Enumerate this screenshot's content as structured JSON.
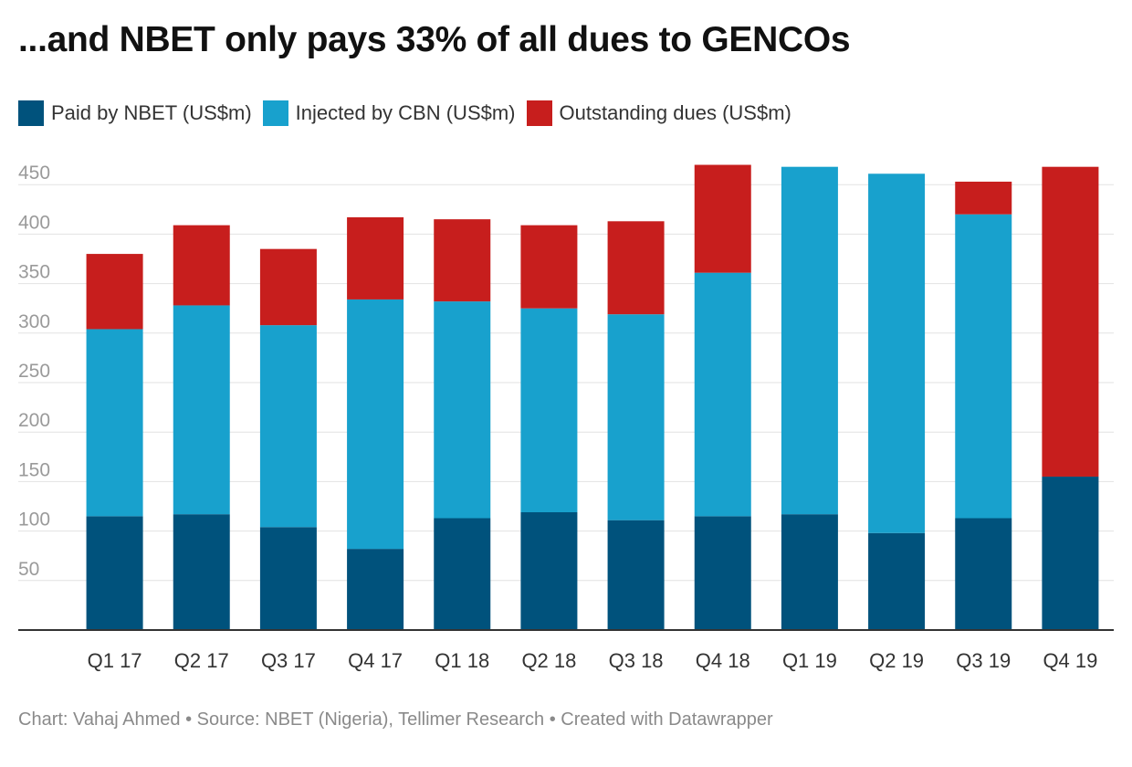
{
  "title": "...and NBET only pays 33% of all dues to GENCOs",
  "footer": {
    "chart_label": "Chart: Vahaj Ahmed",
    "separator": "•",
    "source_label": "Source: NBET (Nigeria), Tellimer Research",
    "created_label": "Created with Datawrapper"
  },
  "chart_data": {
    "type": "bar",
    "stacked": true,
    "categories": [
      "Q1 17",
      "Q2 17",
      "Q3 17",
      "Q4 17",
      "Q1 18",
      "Q2 18",
      "Q3 18",
      "Q4 18",
      "Q1 19",
      "Q2 19",
      "Q3 19",
      "Q4 19"
    ],
    "series": [
      {
        "name": "Paid by NBET (US$m)",
        "color": "#00527c",
        "values": [
          115,
          117,
          104,
          82,
          113,
          119,
          111,
          115,
          117,
          98,
          113,
          155
        ]
      },
      {
        "name": "Injected by CBN (US$m)",
        "color": "#18a1cd",
        "values": [
          189,
          211,
          204,
          252,
          219,
          206,
          208,
          246,
          351,
          363,
          307,
          0
        ]
      },
      {
        "name": "Outstanding dues (US$m)",
        "color": "#c71e1d",
        "values": [
          76,
          81,
          77,
          83,
          83,
          84,
          94,
          109,
          0,
          0,
          33,
          313
        ]
      }
    ],
    "yticks": [
      50,
      100,
      150,
      200,
      250,
      300,
      350,
      400,
      450
    ],
    "ylim": [
      0,
      470
    ],
    "grid": true,
    "legend_position": "top-left"
  }
}
